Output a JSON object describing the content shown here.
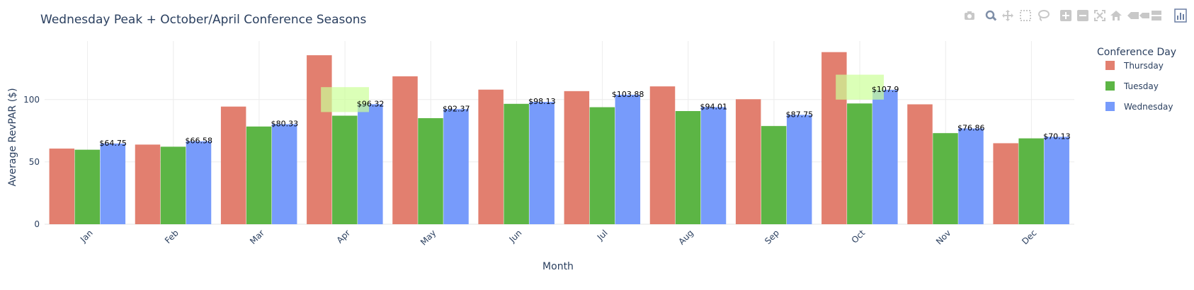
{
  "chart_data": {
    "type": "bar",
    "title": "Wednesday Peak + October/April Conference Seasons",
    "xlabel": "Month",
    "ylabel": "Average RevPAR ($)",
    "categories": [
      "Jan",
      "Feb",
      "Mar",
      "Apr",
      "May",
      "Jun",
      "Jul",
      "Aug",
      "Sep",
      "Oct",
      "Nov",
      "Dec"
    ],
    "ylim": [
      0,
      147
    ],
    "yticks": [
      0,
      50,
      100
    ],
    "ytick_labels": [
      "0",
      "50",
      "100"
    ],
    "grid": true,
    "legend": {
      "title": "Conference Day",
      "placement": "right"
    },
    "series": [
      {
        "name": "Thursday",
        "color": "#e27f6f",
        "values": [
          60.7,
          63.9,
          94.4,
          135.6,
          118.7,
          108.0,
          106.8,
          110.6,
          100.3,
          138.1,
          96.2,
          65.0
        ]
      },
      {
        "name": "Tuesday",
        "color": "#5cb545",
        "values": [
          59.8,
          62.2,
          78.4,
          87.1,
          85.1,
          96.6,
          93.9,
          90.8,
          78.8,
          96.9,
          73.1,
          68.9
        ]
      },
      {
        "name": "Wednesday",
        "color": "#779bfb",
        "values": [
          64.75,
          66.58,
          80.33,
          96.32,
          92.37,
          98.13,
          103.88,
          94.01,
          87.75,
          107.9,
          76.86,
          70.13
        ],
        "labels": [
          "$64.75",
          "$66.58",
          "$80.33",
          "$96.32",
          "$92.37",
          "$98.13",
          "$103.88",
          "$94.01",
          "$87.75",
          "$107.9",
          "$76.86",
          "$70.13"
        ]
      }
    ],
    "highlights": [
      {
        "category": "Apr",
        "y_range": [
          90,
          110
        ],
        "color": "#ccff99"
      },
      {
        "category": "Oct",
        "y_range": [
          100,
          120
        ],
        "color": "#ccff99"
      }
    ]
  },
  "modebar": {
    "icons": [
      "camera-icon",
      "zoom-icon",
      "pan-icon",
      "box-select-icon",
      "lasso-select-icon",
      "zoom-in-icon",
      "zoom-out-icon",
      "autoscale-icon",
      "reset-axes-icon",
      "spike-lines-icon",
      "hover-closest-icon",
      "hover-compare-icon",
      "plotly-logo-icon"
    ]
  }
}
